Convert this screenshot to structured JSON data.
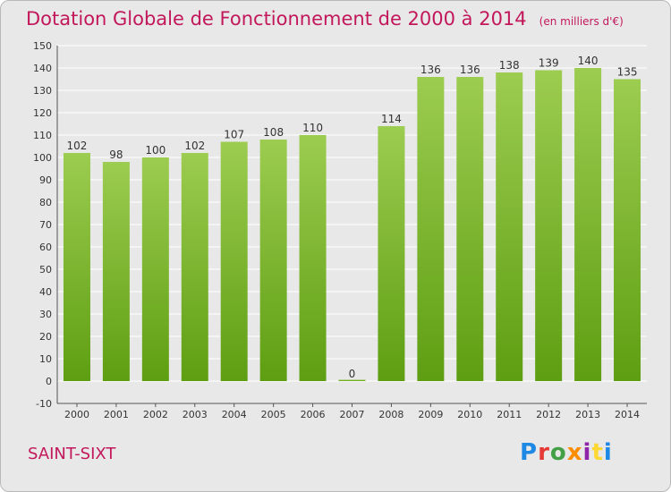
{
  "header": {
    "title": "Dotation Globale de Fonctionnement de 2000 à 2014",
    "units": "(en milliers d'€)"
  },
  "footer": {
    "town": "SAINT-SIXT",
    "logo": "Proxiti"
  },
  "colors": {
    "bar_top": "#9ccc50",
    "bar_bottom": "#5e9e12",
    "title": "#c2185b",
    "grid": "#ffffff",
    "background": "#e8e8e8"
  },
  "chart_data": {
    "type": "bar",
    "title": "Dotation Globale de Fonctionnement de 2000 à 2014",
    "subtitle": "(en milliers d'€)",
    "xlabel": "",
    "ylabel": "",
    "categories": [
      "2000",
      "2001",
      "2002",
      "2003",
      "2004",
      "2005",
      "2006",
      "2007",
      "2008",
      "2009",
      "2010",
      "2011",
      "2012",
      "2013",
      "2014"
    ],
    "values": [
      102,
      98,
      100,
      102,
      107,
      108,
      110,
      0,
      114,
      136,
      136,
      138,
      139,
      140,
      135
    ],
    "ylim": [
      -10,
      150
    ],
    "yticks": [
      -10,
      0,
      10,
      20,
      30,
      40,
      50,
      60,
      70,
      80,
      90,
      100,
      110,
      120,
      130,
      140,
      150
    ],
    "grid": true,
    "data_labels": true
  }
}
